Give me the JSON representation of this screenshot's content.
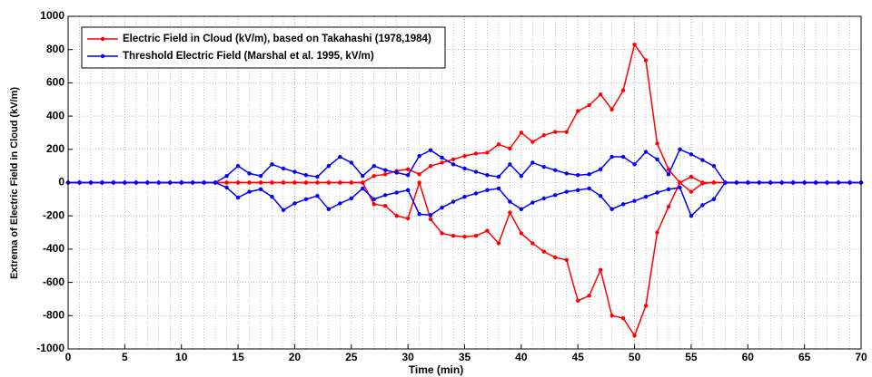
{
  "chart_data": {
    "type": "line",
    "xlabel": "Time (min)",
    "ylabel": "Extrema of Electric Field in Cloud (kV/m)",
    "x": [
      0,
      1,
      2,
      3,
      4,
      5,
      6,
      7,
      8,
      9,
      10,
      11,
      12,
      13,
      14,
      15,
      16,
      17,
      18,
      19,
      20,
      21,
      22,
      23,
      24,
      25,
      26,
      27,
      28,
      29,
      30,
      31,
      32,
      33,
      34,
      35,
      36,
      37,
      38,
      39,
      40,
      41,
      42,
      43,
      44,
      45,
      46,
      47,
      48,
      49,
      50,
      51,
      52,
      53,
      54,
      55,
      56,
      57,
      58,
      59,
      60,
      61,
      62,
      63,
      64,
      65,
      66,
      67,
      68,
      69,
      70
    ],
    "series": [
      {
        "name": "Electric Field in Cloud (kV/m), based on Takahashi (1978,1984)",
        "color": "#ff0000",
        "values_max": [
          0,
          0,
          0,
          0,
          0,
          0,
          0,
          0,
          0,
          0,
          0,
          0,
          0,
          0,
          0,
          0,
          0,
          0,
          0,
          0,
          0,
          0,
          0,
          0,
          0,
          0,
          0,
          40,
          50,
          70,
          80,
          50,
          100,
          120,
          140,
          160,
          175,
          180,
          230,
          205,
          300,
          245,
          285,
          305,
          305,
          430,
          465,
          530,
          440,
          555,
          830,
          735,
          235,
          80,
          0,
          35,
          0,
          0,
          0,
          0,
          0,
          0,
          0,
          0,
          0,
          0,
          0,
          0,
          0,
          0,
          0
        ],
        "values_min": [
          0,
          0,
          0,
          0,
          0,
          0,
          0,
          0,
          0,
          0,
          0,
          0,
          0,
          0,
          0,
          0,
          0,
          0,
          0,
          0,
          0,
          0,
          0,
          0,
          0,
          0,
          0,
          -130,
          -140,
          -200,
          -215,
          0,
          -220,
          -305,
          -320,
          -325,
          -320,
          -290,
          -365,
          -180,
          -305,
          -365,
          -415,
          -450,
          -465,
          -710,
          -680,
          -525,
          -800,
          -815,
          -920,
          -740,
          -300,
          -145,
          0,
          -55,
          -5,
          0,
          0,
          0,
          0,
          0,
          0,
          0,
          0,
          0,
          0,
          0,
          0,
          0,
          0
        ]
      },
      {
        "name": "Threshold Electric Field (Marshal et al. 1995, kV/m)",
        "color": "#0000ff",
        "values_max": [
          0,
          0,
          0,
          0,
          0,
          0,
          0,
          0,
          0,
          0,
          0,
          0,
          0,
          0,
          40,
          100,
          55,
          40,
          110,
          85,
          65,
          45,
          35,
          100,
          155,
          120,
          40,
          100,
          75,
          60,
          45,
          160,
          195,
          150,
          110,
          85,
          65,
          45,
          35,
          110,
          40,
          120,
          95,
          75,
          55,
          45,
          50,
          80,
          155,
          155,
          110,
          185,
          140,
          50,
          200,
          170,
          135,
          100,
          0,
          0,
          0,
          0,
          0,
          0,
          0,
          0,
          0,
          0,
          0,
          0,
          0
        ],
        "values_min": [
          0,
          0,
          0,
          0,
          0,
          0,
          0,
          0,
          0,
          0,
          0,
          0,
          0,
          0,
          -30,
          -90,
          -55,
          -40,
          -85,
          -165,
          -125,
          -100,
          -80,
          -160,
          -125,
          -95,
          -35,
          -100,
          -75,
          -60,
          -45,
          -190,
          -195,
          -150,
          -115,
          -85,
          -65,
          -45,
          -35,
          -115,
          -160,
          -120,
          -95,
          -75,
          -55,
          -45,
          -35,
          -80,
          -160,
          -130,
          -110,
          -85,
          -60,
          -40,
          -30,
          -200,
          -135,
          -100,
          0,
          0,
          0,
          0,
          0,
          0,
          0,
          0,
          0,
          0,
          0,
          0,
          0
        ]
      }
    ],
    "xlim": [
      0,
      70
    ],
    "xticks": [
      0,
      5,
      10,
      15,
      20,
      25,
      30,
      35,
      40,
      45,
      50,
      55,
      60,
      65,
      70
    ],
    "ylim": [
      -1000,
      1000
    ],
    "yticks": [
      -1000,
      -800,
      -600,
      -400,
      -200,
      0,
      200,
      400,
      600,
      800,
      1000
    ],
    "grid": true,
    "legend": "upper left"
  }
}
